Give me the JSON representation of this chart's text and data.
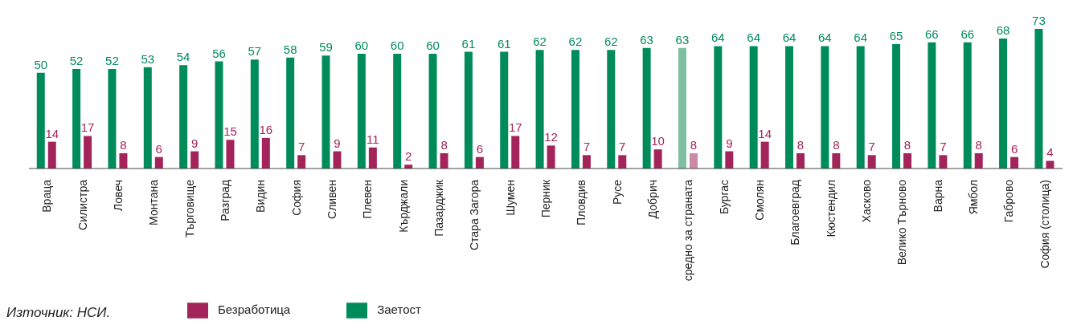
{
  "chart_data": {
    "type": "bar",
    "categories": [
      "Враца",
      "Силистра",
      "Ловеч",
      "Монтана",
      "Търговище",
      "Разград",
      "Видин",
      "София",
      "Сливен",
      "Плевен",
      "Кърджали",
      "Пазарджик",
      "Стара Загора",
      "Шумен",
      "Перник",
      "Пловдив",
      "Русе",
      "Добрич",
      "средно за страната",
      "Бургас",
      "Смолян",
      "Благоевград",
      "Кюстендил",
      "Хасково",
      "Велико Търново",
      "Варна",
      "Ямбол",
      "Габрово",
      "София (столица)"
    ],
    "series": [
      {
        "name": "Заетост",
        "color": "#008c5a",
        "colors": [
          "#008c5a",
          "#008c5a",
          "#008c5a",
          "#008c5a",
          "#008c5a",
          "#008c5a",
          "#008c5a",
          "#008c5a",
          "#008c5a",
          "#008c5a",
          "#008c5a",
          "#008c5a",
          "#008c5a",
          "#008c5a",
          "#008c5a",
          "#008c5a",
          "#008c5a",
          "#008c5a",
          "#7fbfa0",
          "#008c5a",
          "#008c5a",
          "#008c5a",
          "#008c5a",
          "#008c5a",
          "#008c5a",
          "#008c5a",
          "#008c5a",
          "#008c5a",
          "#008c5a"
        ],
        "values": [
          50,
          52,
          52,
          53,
          54,
          56,
          57,
          58,
          59,
          60,
          60,
          60,
          61,
          61,
          62,
          62,
          62,
          63,
          63,
          64,
          64,
          64,
          64,
          64,
          65,
          66,
          66,
          68,
          73
        ]
      },
      {
        "name": "Безработица",
        "color": "#a3245a",
        "colors": [
          "#a3245a",
          "#a3245a",
          "#a3245a",
          "#a3245a",
          "#a3245a",
          "#a3245a",
          "#a3245a",
          "#a3245a",
          "#a3245a",
          "#a3245a",
          "#a3245a",
          "#a3245a",
          "#a3245a",
          "#a3245a",
          "#a3245a",
          "#a3245a",
          "#a3245a",
          "#a3245a",
          "#cc8aa6",
          "#a3245a",
          "#a3245a",
          "#a3245a",
          "#a3245a",
          "#a3245a",
          "#a3245a",
          "#a3245a",
          "#a3245a",
          "#a3245a",
          "#a3245a"
        ],
        "values": [
          14,
          17,
          8,
          6,
          9,
          15,
          16,
          7,
          9,
          11,
          2,
          8,
          6,
          17,
          12,
          7,
          7,
          10,
          8,
          9,
          14,
          8,
          8,
          7,
          8,
          7,
          8,
          6,
          4
        ]
      }
    ],
    "data_labels": true,
    "grid": false,
    "legend": "bottom",
    "annotations": [
      "Източник: НСИ."
    ]
  }
}
